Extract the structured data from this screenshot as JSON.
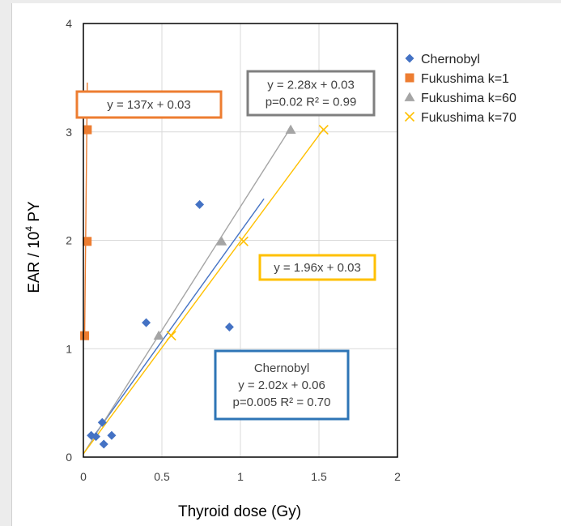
{
  "chart_data": {
    "type": "scatter",
    "xlabel": "Thyroid dose (Gy)",
    "ylabel_main": "EAR / 10",
    "ylabel_sup": "4",
    "ylabel_tail": " PY",
    "xlim": [
      0,
      2
    ],
    "ylim": [
      0,
      4
    ],
    "x_ticks": [
      "0",
      "0.5",
      "1",
      "1.5",
      "2"
    ],
    "y_ticks": [
      "0",
      "1",
      "2",
      "3",
      "4"
    ],
    "x_tick_values": [
      0,
      0.5,
      1,
      1.5,
      2
    ],
    "y_tick_values": [
      0,
      1,
      2,
      3,
      4
    ],
    "grid": true,
    "legend_position": "right",
    "series": [
      {
        "name": "Chernobyl",
        "marker": "diamond",
        "color": "#4472c4",
        "points": [
          [
            0.05,
            0.2
          ],
          [
            0.08,
            0.19
          ],
          [
            0.12,
            0.32
          ],
          [
            0.13,
            0.12
          ],
          [
            0.18,
            0.2
          ],
          [
            0.4,
            1.24
          ],
          [
            0.74,
            2.33
          ],
          [
            0.93,
            1.2
          ]
        ],
        "fit": {
          "slope": 2.02,
          "intercept": 0.06,
          "x_range": [
            0.05,
            1.15
          ]
        }
      },
      {
        "name": "Fukushima k=1",
        "marker": "square",
        "color": "#ed7d31",
        "points": [
          [
            0.008,
            1.12
          ],
          [
            0.024,
            1.99
          ],
          [
            0.025,
            3.02
          ]
        ],
        "fit": {
          "slope": 137,
          "intercept": 0.03,
          "x_range": [
            0.008,
            0.025
          ]
        }
      },
      {
        "name": "Fukushima k=60",
        "marker": "triangle",
        "color": "#a5a5a5",
        "points": [
          [
            0.48,
            1.12
          ],
          [
            0.88,
            1.99
          ],
          [
            1.32,
            3.02
          ]
        ],
        "fit": {
          "slope": 2.28,
          "intercept": 0.03,
          "x_range": [
            0.0,
            1.32
          ]
        }
      },
      {
        "name": "Fukushima k=70",
        "marker": "x",
        "color": "#ffc000",
        "points": [
          [
            0.56,
            1.12
          ],
          [
            1.02,
            1.99
          ],
          [
            1.53,
            3.02
          ]
        ],
        "fit": {
          "slope": 1.96,
          "intercept": 0.03,
          "x_range": [
            0.0,
            1.53
          ]
        }
      }
    ],
    "annotations": [
      {
        "id": "k1",
        "color": "#ed7d31",
        "lines": [
          "y = 137x + 0.03"
        ]
      },
      {
        "id": "k60",
        "color": "#7f7f7f",
        "lines": [
          "y = 2.28x + 0.03",
          "p=0.02 R² = 0.99"
        ]
      },
      {
        "id": "k70",
        "color": "#ffc000",
        "lines": [
          "y = 1.96x + 0.03"
        ]
      },
      {
        "id": "chernobyl",
        "color": "#2e75b6",
        "lines": [
          "Chernobyl",
          "y = 2.02x + 0.06",
          "p=0.005 R² = 0.70"
        ]
      }
    ]
  }
}
